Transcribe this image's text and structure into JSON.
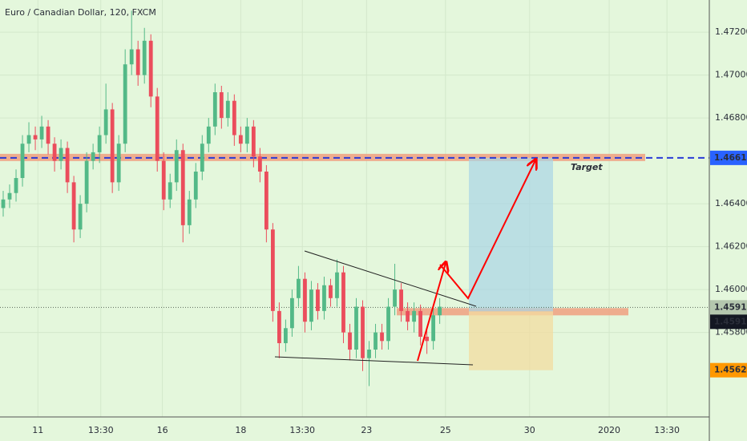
{
  "chart_data": {
    "type": "candlestick",
    "title": "Euro / Canadian Dollar, 120, FXCM",
    "up_color": "#53b987",
    "down_color": "#eb4d5c",
    "grid": true,
    "xlim": [
      -0.5,
      110
    ],
    "ylim": [
      1.45406,
      1.4735
    ],
    "xticks": [
      {
        "value": 5.4,
        "label": "11"
      },
      {
        "value": 15.2,
        "label": "13:30"
      },
      {
        "value": 24.8,
        "label": "16"
      },
      {
        "value": 37,
        "label": "18"
      },
      {
        "value": 46.6,
        "label": "13:30"
      },
      {
        "value": 56.6,
        "label": "23"
      },
      {
        "value": 68.9,
        "label": "25"
      },
      {
        "value": 82,
        "label": "30"
      },
      {
        "value": 94.4,
        "label": "2020"
      },
      {
        "value": 103.4,
        "label": "13:30"
      }
    ],
    "yticks": [
      {
        "value": 1.472,
        "label": "1.47200"
      },
      {
        "value": 1.47,
        "label": "1.47000"
      },
      {
        "value": 1.468,
        "label": "1.46800"
      },
      {
        "value": 1.464,
        "label": "1.46400"
      },
      {
        "value": 1.462,
        "label": "1.46200"
      },
      {
        "value": 1.46,
        "label": "1.46000"
      },
      {
        "value": 1.458,
        "label": "1.45800"
      }
    ],
    "open": [
      1.4638,
      1.4642,
      1.4645,
      1.4652,
      1.4668,
      1.4672,
      1.467,
      1.4676,
      1.4668,
      1.466,
      1.4666,
      1.465,
      1.4628,
      1.464,
      1.466,
      1.4664,
      1.4672,
      1.4684,
      1.465,
      1.4668,
      1.4705,
      1.4712,
      1.47,
      1.4716,
      1.469,
      1.466,
      1.4642,
      1.465,
      1.4665,
      1.463,
      1.4642,
      1.4655,
      1.4668,
      1.4676,
      1.4692,
      1.468,
      1.4688,
      1.4672,
      1.4668,
      1.4676,
      1.4662,
      1.4655,
      1.4628,
      1.459,
      1.4575,
      1.4582,
      1.4596,
      1.4605,
      1.4585,
      1.46,
      1.459,
      1.4602,
      1.4596,
      1.4608,
      1.458,
      1.4572,
      1.4592,
      1.4568,
      1.4572,
      1.458,
      1.4576,
      1.4592,
      1.46,
      1.459,
      1.4585,
      1.459,
      1.4578,
      1.4576,
      1.4588
    ],
    "high": [
      1.4646,
      1.4649,
      1.4656,
      1.4672,
      1.4678,
      1.4676,
      1.4681,
      1.4679,
      1.4671,
      1.467,
      1.4669,
      1.4653,
      1.4644,
      1.4664,
      1.4668,
      1.4676,
      1.4696,
      1.4687,
      1.4672,
      1.4712,
      1.473,
      1.4716,
      1.4722,
      1.4719,
      1.4694,
      1.4664,
      1.4654,
      1.467,
      1.4668,
      1.4646,
      1.4659,
      1.4672,
      1.468,
      1.4696,
      1.4695,
      1.4692,
      1.4691,
      1.4676,
      1.468,
      1.4679,
      1.4666,
      1.4658,
      1.4631,
      1.4594,
      1.4586,
      1.46,
      1.4611,
      1.4608,
      1.4604,
      1.4603,
      1.4606,
      1.4605,
      1.4614,
      1.4611,
      1.4584,
      1.4596,
      1.4595,
      1.4576,
      1.4584,
      1.4584,
      1.4596,
      1.4612,
      1.4603,
      1.4594,
      1.4594,
      1.4593,
      1.4582,
      1.4592,
      1.4596
    ],
    "low": [
      1.4634,
      1.4638,
      1.4641,
      1.4648,
      1.4664,
      1.4665,
      1.4666,
      1.4663,
      1.4655,
      1.4656,
      1.4645,
      1.4622,
      1.4624,
      1.4636,
      1.4656,
      1.4659,
      1.4668,
      1.4645,
      1.4646,
      1.4664,
      1.47,
      1.4695,
      1.4696,
      1.4685,
      1.4655,
      1.4637,
      1.4638,
      1.4646,
      1.4622,
      1.4626,
      1.4638,
      1.4651,
      1.4664,
      1.4672,
      1.4675,
      1.4676,
      1.4667,
      1.4664,
      1.4664,
      1.4657,
      1.465,
      1.4622,
      1.4585,
      1.4568,
      1.4571,
      1.4578,
      1.4592,
      1.458,
      1.4581,
      1.4586,
      1.4586,
      1.4592,
      1.4592,
      1.4575,
      1.4567,
      1.4568,
      1.4562,
      1.4555,
      1.4568,
      1.4572,
      1.4572,
      1.4588,
      1.4585,
      1.4581,
      1.458,
      1.4574,
      1.457,
      1.4572,
      1.4584
    ],
    "close": [
      1.4642,
      1.4645,
      1.4652,
      1.4668,
      1.4672,
      1.467,
      1.4676,
      1.4668,
      1.466,
      1.4666,
      1.465,
      1.4628,
      1.464,
      1.466,
      1.4664,
      1.4672,
      1.4684,
      1.465,
      1.4668,
      1.4705,
      1.4712,
      1.47,
      1.4716,
      1.469,
      1.466,
      1.4642,
      1.465,
      1.4665,
      1.463,
      1.4642,
      1.4655,
      1.4668,
      1.4676,
      1.4692,
      1.468,
      1.4688,
      1.4672,
      1.4668,
      1.4676,
      1.4662,
      1.4655,
      1.4628,
      1.459,
      1.4575,
      1.4582,
      1.4596,
      1.4605,
      1.4585,
      1.46,
      1.459,
      1.4602,
      1.4596,
      1.4608,
      1.458,
      1.4572,
      1.4592,
      1.4568,
      1.4572,
      1.458,
      1.4576,
      1.4592,
      1.46,
      1.459,
      1.4585,
      1.459,
      1.4578,
      1.4576,
      1.4588,
      1.4592
    ],
    "price_tags": [
      {
        "value": 1.46614,
        "color": "#2962ff"
      },
      {
        "value": 1.45917,
        "color": "#b4c7ae"
      },
      {
        "value": 1.45916,
        "color": "#131722"
      },
      {
        "value": 1.45624,
        "color": "#ff9800"
      }
    ],
    "annotations": [
      "Target"
    ]
  }
}
